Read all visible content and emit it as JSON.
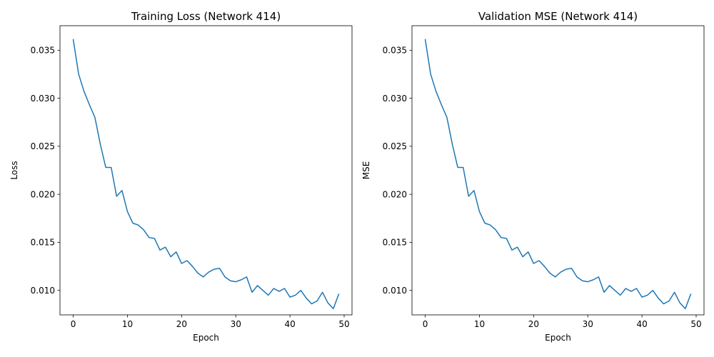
{
  "chart_data": [
    {
      "type": "line",
      "title": "Training Loss (Network 414)",
      "xlabel": "Epoch",
      "ylabel": "Loss",
      "xlim": [
        -2.45,
        51.45
      ],
      "ylim": [
        0.00745,
        0.03755
      ],
      "xticks": [
        0,
        10,
        20,
        30,
        40,
        50
      ],
      "yticks": [
        0.01,
        0.015,
        0.02,
        0.025,
        0.03,
        0.035
      ],
      "ytick_labels": [
        "0.010",
        "0.015",
        "0.020",
        "0.025",
        "0.030",
        "0.035"
      ],
      "grid": false,
      "color": "#1f77b4",
      "x": [
        0,
        1,
        2,
        3,
        4,
        5,
        6,
        7,
        8,
        9,
        10,
        11,
        12,
        13,
        14,
        15,
        16,
        17,
        18,
        19,
        20,
        21,
        22,
        23,
        24,
        25,
        26,
        27,
        28,
        29,
        30,
        31,
        32,
        33,
        34,
        35,
        36,
        37,
        38,
        39,
        40,
        41,
        42,
        43,
        44,
        45,
        46,
        47,
        48,
        49
      ],
      "y": [
        0.0361,
        0.0325,
        0.0307,
        0.0293,
        0.028,
        0.0252,
        0.0228,
        0.0228,
        0.0198,
        0.0204,
        0.0182,
        0.017,
        0.0168,
        0.0163,
        0.0155,
        0.0154,
        0.0142,
        0.0145,
        0.0135,
        0.014,
        0.0128,
        0.0131,
        0.0125,
        0.0118,
        0.0114,
        0.0119,
        0.0122,
        0.0123,
        0.0114,
        0.011,
        0.0109,
        0.0111,
        0.0114,
        0.0098,
        0.0105,
        0.01,
        0.0095,
        0.0102,
        0.0099,
        0.0102,
        0.0093,
        0.0095,
        0.01,
        0.0092,
        0.0086,
        0.0089,
        0.0098,
        0.0087,
        0.0081,
        0.0096
      ]
    },
    {
      "type": "line",
      "title": "Validation MSE (Network 414)",
      "xlabel": "Epoch",
      "ylabel": "MSE",
      "xlim": [
        -2.45,
        51.45
      ],
      "ylim": [
        0.00745,
        0.03755
      ],
      "xticks": [
        0,
        10,
        20,
        30,
        40,
        50
      ],
      "yticks": [
        0.01,
        0.015,
        0.02,
        0.025,
        0.03,
        0.035
      ],
      "ytick_labels": [
        "0.010",
        "0.015",
        "0.020",
        "0.025",
        "0.030",
        "0.035"
      ],
      "grid": false,
      "color": "#1f77b4",
      "x": [
        0,
        1,
        2,
        3,
        4,
        5,
        6,
        7,
        8,
        9,
        10,
        11,
        12,
        13,
        14,
        15,
        16,
        17,
        18,
        19,
        20,
        21,
        22,
        23,
        24,
        25,
        26,
        27,
        28,
        29,
        30,
        31,
        32,
        33,
        34,
        35,
        36,
        37,
        38,
        39,
        40,
        41,
        42,
        43,
        44,
        45,
        46,
        47,
        48,
        49
      ],
      "y": [
        0.0361,
        0.0325,
        0.0307,
        0.0293,
        0.028,
        0.0252,
        0.0228,
        0.0228,
        0.0198,
        0.0204,
        0.0182,
        0.017,
        0.0168,
        0.0163,
        0.0155,
        0.0154,
        0.0142,
        0.0145,
        0.0135,
        0.014,
        0.0128,
        0.0131,
        0.0125,
        0.0118,
        0.0114,
        0.0119,
        0.0122,
        0.0123,
        0.0114,
        0.011,
        0.0109,
        0.0111,
        0.0114,
        0.0098,
        0.0105,
        0.01,
        0.0095,
        0.0102,
        0.0099,
        0.0102,
        0.0093,
        0.0095,
        0.01,
        0.0092,
        0.0086,
        0.0089,
        0.0098,
        0.0087,
        0.0081,
        0.0096
      ]
    }
  ]
}
